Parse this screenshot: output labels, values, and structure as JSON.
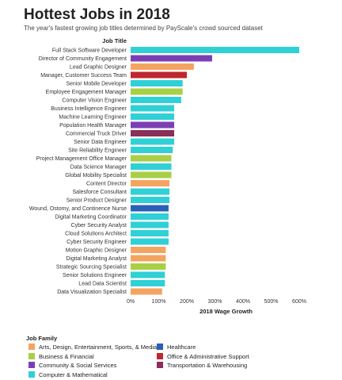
{
  "title": "Hottest Jobs in 2018",
  "subtitle": "The year's fastest growing job titles determined by PayScale's crowd sourced dataset",
  "colors": {
    "arts": "#f4a460",
    "business": "#a8cf45",
    "community": "#7b3fb5",
    "computer": "#2fd0d6",
    "healthcare": "#2a5fb8",
    "office": "#c0262d",
    "transportation": "#8a2e5a"
  },
  "legend": {
    "title": "Job Family",
    "items": [
      {
        "key": "arts",
        "label": "Arts, Design, Entertainment, Sports, & Media"
      },
      {
        "key": "healthcare",
        "label": "Healthcare"
      },
      {
        "key": "business",
        "label": "Business & Financial"
      },
      {
        "key": "office",
        "label": "Office & Administrative Support"
      },
      {
        "key": "community",
        "label": "Community & Social Services"
      },
      {
        "key": "transportation",
        "label": "Transportation & Warehousing"
      },
      {
        "key": "computer",
        "label": "Computer & Mathematical"
      }
    ]
  },
  "chart_data": {
    "type": "bar",
    "orientation": "horizontal",
    "ylabel": "Job Title",
    "xlabel": "2018 Wage Growth",
    "xlim": [
      0,
      600
    ],
    "ticks": [
      0,
      100,
      200,
      300,
      400,
      500,
      600
    ],
    "tick_labels": [
      "0%",
      "100%",
      "200%",
      "300%",
      "400%",
      "500%",
      "600%"
    ],
    "grid": false,
    "legend_position": "bottom",
    "bars": [
      {
        "label": "Full Stack Software Developer",
        "value": 600,
        "family": "computer"
      },
      {
        "label": "Director of Community Engagement",
        "value": 290,
        "family": "community"
      },
      {
        "label": "Lead Graphic Designer",
        "value": 225,
        "family": "arts"
      },
      {
        "label": "Manager, Customer Success Team",
        "value": 200,
        "family": "office"
      },
      {
        "label": "Senior Mobile Developer",
        "value": 185,
        "family": "computer"
      },
      {
        "label": "Employee Engagement Manager",
        "value": 185,
        "family": "business"
      },
      {
        "label": "Computer Vision Engineer",
        "value": 180,
        "family": "computer"
      },
      {
        "label": "Business Intelligence Engineer",
        "value": 155,
        "family": "computer"
      },
      {
        "label": "Machine Learning Engineer",
        "value": 155,
        "family": "computer"
      },
      {
        "label": "Population Health Manager",
        "value": 155,
        "family": "community"
      },
      {
        "label": "Commercial Truck Driver",
        "value": 155,
        "family": "transportation"
      },
      {
        "label": "Senior Data Engineer",
        "value": 155,
        "family": "computer"
      },
      {
        "label": "Site Reliability Engineer",
        "value": 150,
        "family": "computer"
      },
      {
        "label": "Project Management Office Manager",
        "value": 145,
        "family": "business"
      },
      {
        "label": "Data Science Manager",
        "value": 145,
        "family": "computer"
      },
      {
        "label": "Global Mobility Specialist",
        "value": 145,
        "family": "business"
      },
      {
        "label": "Content Director",
        "value": 138,
        "family": "arts"
      },
      {
        "label": "Salesforce Consultant",
        "value": 138,
        "family": "computer"
      },
      {
        "label": "Senior Product Designer",
        "value": 138,
        "family": "computer"
      },
      {
        "label": "Wound, Ostomy, and Continence Nurse",
        "value": 135,
        "family": "healthcare"
      },
      {
        "label": "Digital Marketing Coordinator",
        "value": 135,
        "family": "computer"
      },
      {
        "label": "Cyber Security Analyst",
        "value": 135,
        "family": "computer"
      },
      {
        "label": "Cloud Solutions Architect",
        "value": 135,
        "family": "computer"
      },
      {
        "label": "Cyber Security Engineer",
        "value": 135,
        "family": "computer"
      },
      {
        "label": "Motion Graphic Designer",
        "value": 125,
        "family": "arts"
      },
      {
        "label": "Digital Marketing Analyst",
        "value": 125,
        "family": "arts"
      },
      {
        "label": "Strategic Sourcing Specialist",
        "value": 125,
        "family": "business"
      },
      {
        "label": "Senior Solutions Engineer",
        "value": 122,
        "family": "computer"
      },
      {
        "label": "Lead Data Scientist",
        "value": 122,
        "family": "computer"
      },
      {
        "label": "Data Visualization Specialist",
        "value": 112,
        "family": "arts"
      }
    ]
  }
}
